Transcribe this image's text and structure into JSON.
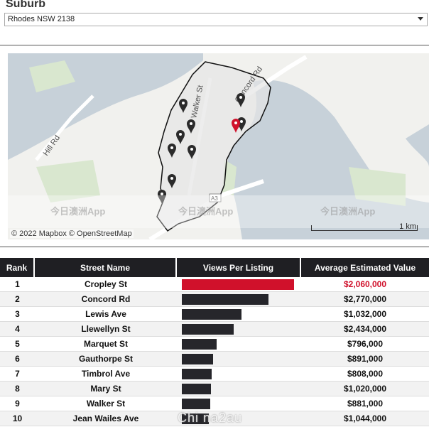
{
  "suburb": {
    "label": "Suburb",
    "selected": "Rhodes NSW 2138"
  },
  "map": {
    "street_labels": [
      "Walker St",
      "Concord Rd",
      "Hill Rd"
    ],
    "road_badge": "A3",
    "attribution": "© 2022 Mapbox © OpenStreetMap",
    "scale_label": "1 km",
    "watermarks": [
      "今日澳洲App",
      "今日澳洲App",
      "今日澳洲App"
    ],
    "colors": {
      "water": "#c7d1d9",
      "land": "#f1f1ee",
      "park": "#d9e7cf",
      "boundary": "#111111",
      "pin": "#2b2b2b",
      "pin_selected": "#d0112b"
    }
  },
  "table": {
    "headers": [
      "Rank",
      "Street Name",
      "Views Per Listing",
      "Average Estimated Value"
    ],
    "rows": [
      {
        "rank": "1",
        "street": "Cropley St",
        "views": 1.0,
        "value": "$2,060,000"
      },
      {
        "rank": "2",
        "street": "Concord Rd",
        "views": 0.77,
        "value": "$2,770,000"
      },
      {
        "rank": "3",
        "street": "Lewis Ave",
        "views": 0.53,
        "value": "$1,032,000"
      },
      {
        "rank": "4",
        "street": "Llewellyn St",
        "views": 0.46,
        "value": "$2,434,000"
      },
      {
        "rank": "5",
        "street": "Marquet St",
        "views": 0.31,
        "value": "$796,000"
      },
      {
        "rank": "6",
        "street": "Gauthorpe St",
        "views": 0.28,
        "value": "$891,000"
      },
      {
        "rank": "7",
        "street": "Timbrol Ave",
        "views": 0.265,
        "value": "$808,000"
      },
      {
        "rank": "8",
        "street": "Mary St",
        "views": 0.26,
        "value": "$1,020,000"
      },
      {
        "rank": "9",
        "street": "Walker St",
        "views": 0.25,
        "value": "$881,000"
      },
      {
        "rank": "10",
        "street": "Jean Wailes Ave",
        "views": 0.24,
        "value": "$1,044,000"
      }
    ]
  },
  "footer_watermark": "Chi na2au"
}
